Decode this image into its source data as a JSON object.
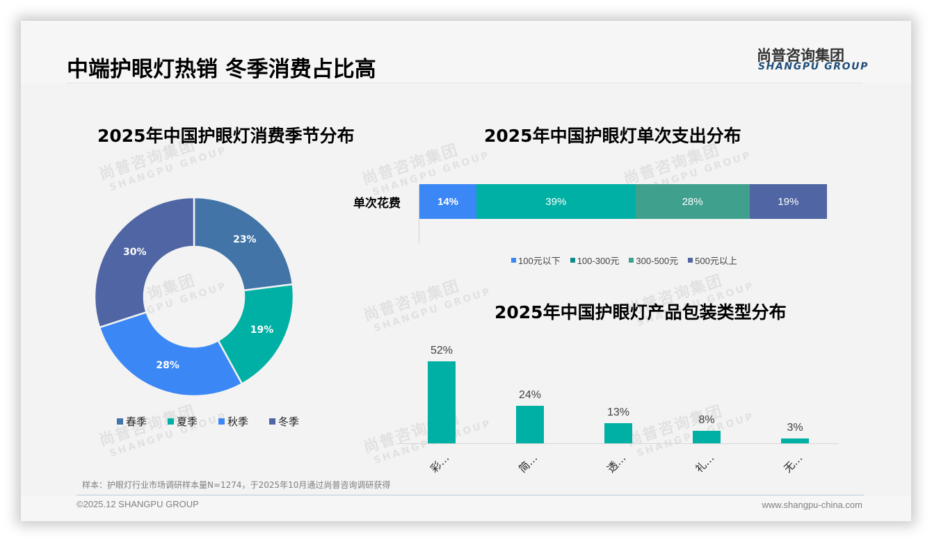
{
  "header": {
    "title": "中端护眼灯热销 冬季消费占比高",
    "logo_cn": "尚普咨询集团",
    "logo_en": "SHANGPU GROUP"
  },
  "watermark": {
    "cn": "尚普咨询集团",
    "en": "SHANGPU GROUP"
  },
  "colors": {
    "spring": "#4274a8",
    "summer": "#00b0a4",
    "autumn": "#3b87f5",
    "winter": "#5065a3",
    "under100": "#3b87f5",
    "r100_300": "#00b0a4",
    "r300_500": "#40a08e",
    "over500": "#5065a3",
    "column": "#00b0a4"
  },
  "chart_data": [
    {
      "type": "pie",
      "variant": "donut",
      "title": "2025年中国护眼灯消费季节分布",
      "categories": [
        "春季",
        "夏季",
        "秋季",
        "冬季"
      ],
      "values": [
        23,
        19,
        28,
        30
      ],
      "labels": [
        "23%",
        "19%",
        "28%",
        "30%"
      ],
      "colors": [
        "#4274a8",
        "#00b0a4",
        "#3b87f5",
        "#5065a3"
      ],
      "legend_position": "bottom"
    },
    {
      "type": "bar",
      "orientation": "horizontal",
      "stacked": "100%",
      "title": "2025年中国护眼灯单次支出分布",
      "categories": [
        "单次花费"
      ],
      "series": [
        {
          "name": "100元以下",
          "values": [
            14
          ],
          "label": "14%",
          "color": "#3b87f5"
        },
        {
          "name": "100-300元",
          "values": [
            39
          ],
          "label": "39%",
          "color": "#00b0a4"
        },
        {
          "name": "300-500元",
          "values": [
            28
          ],
          "label": "28%",
          "color": "#40a08e"
        },
        {
          "name": "500元以上",
          "values": [
            19
          ],
          "label": "19%",
          "color": "#5065a3"
        }
      ],
      "legend_position": "bottom"
    },
    {
      "type": "bar",
      "title": "2025年中国护眼灯产品包装类型分布",
      "categories": [
        "彩…",
        "简…",
        "透…",
        "礼…",
        "无…"
      ],
      "values": [
        52,
        24,
        13,
        8,
        3
      ],
      "labels": [
        "52%",
        "24%",
        "13%",
        "8%",
        "3%"
      ],
      "ylim": [
        0,
        60
      ],
      "grid": false,
      "color": "#00b0a4"
    }
  ],
  "footer": {
    "note": "样本：护眼灯行业市场调研样本量N=1274，于2025年10月通过尚普咨询调研获得",
    "copyright": "©2025.12 SHANGPU GROUP",
    "website": "www.shangpu-china.com"
  }
}
